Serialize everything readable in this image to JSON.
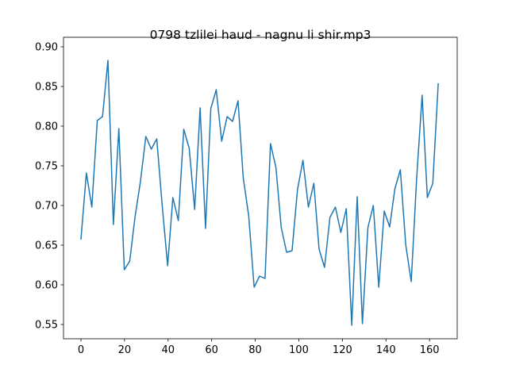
{
  "chart_data": {
    "type": "line",
    "title": "0798 tzlilei haud - nagnu li shir.mp3",
    "x": [
      0,
      2.5,
      5.0,
      7.5,
      9.9,
      12.4,
      14.9,
      17.4,
      19.9,
      22.4,
      24.8,
      27.3,
      29.8,
      32.3,
      34.8,
      37.3,
      39.8,
      42.2,
      44.7,
      47.2,
      49.7,
      52.2,
      54.7,
      57.2,
      59.6,
      62.1,
      64.6,
      67.1,
      69.6,
      72.1,
      74.5,
      77.0,
      79.5,
      82.0,
      84.5,
      87.0,
      89.5,
      91.9,
      94.4,
      96.9,
      99.4,
      101.9,
      104.4,
      106.9,
      109.3,
      111.8,
      114.3,
      116.8,
      119.3,
      121.8,
      124.3,
      126.8,
      129.2,
      131.7,
      134.2,
      136.7,
      139.2,
      141.7,
      144.1,
      146.6,
      149.1,
      151.6,
      154.1,
      156.6,
      159.0,
      161.5,
      164.0
    ],
    "series": [
      {
        "color": "#1f77b4",
        "values": [
          0.657,
          0.741,
          0.698,
          0.807,
          0.812,
          0.883,
          0.676,
          0.797,
          0.619,
          0.63,
          0.685,
          0.73,
          0.787,
          0.771,
          0.784,
          0.7,
          0.624,
          0.71,
          0.681,
          0.796,
          0.772,
          0.695,
          0.823,
          0.671,
          0.822,
          0.846,
          0.781,
          0.812,
          0.806,
          0.832,
          0.735,
          0.687,
          0.597,
          0.611,
          0.608,
          0.778,
          0.748,
          0.673,
          0.641,
          0.643,
          0.72,
          0.757,
          0.698,
          0.728,
          0.645,
          0.622,
          0.685,
          0.698,
          0.666,
          0.696,
          0.549,
          0.711,
          0.551,
          0.672,
          0.7,
          0.597,
          0.693,
          0.673,
          0.721,
          0.745,
          0.65,
          0.604,
          0.735,
          0.839,
          0.71,
          0.728,
          0.854
        ]
      }
    ],
    "xlim": [
      -8.0,
      172.7
    ],
    "ylim": [
      0.532,
      0.912
    ],
    "xticks": [
      0,
      20,
      40,
      60,
      80,
      100,
      120,
      140,
      160
    ],
    "yticks": [
      {
        "value": 0.55,
        "label": "0.55"
      },
      {
        "value": 0.6,
        "label": "0.60"
      },
      {
        "value": 0.65,
        "label": "0.65"
      },
      {
        "value": 0.7,
        "label": "0.70"
      },
      {
        "value": 0.75,
        "label": "0.75"
      },
      {
        "value": 0.8,
        "label": "0.80"
      },
      {
        "value": 0.85,
        "label": "0.85"
      },
      {
        "value": 0.9,
        "label": "0.90"
      }
    ]
  }
}
